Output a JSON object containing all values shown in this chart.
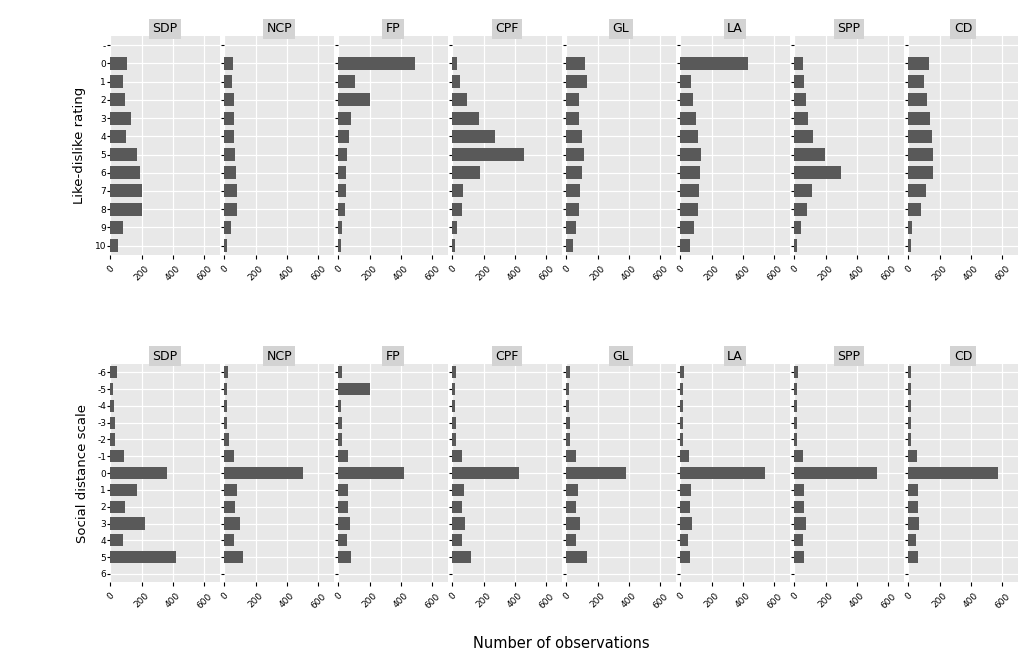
{
  "row_titles": [
    "Like-dislike rating",
    "Social distance scale"
  ],
  "col_titles": [
    "SDP",
    "NCP",
    "FP",
    "CPF",
    "GL",
    "LA",
    "SPP",
    "CD"
  ],
  "xlabel": "Number of observations",
  "bar_color": "#595959",
  "panel_bg": "#e8e8e8",
  "fig_bg": "#ffffff",
  "xlim": [
    0,
    700
  ],
  "xticks": [
    0,
    200,
    400,
    600
  ],
  "ld_labels": [
    "-",
    "0",
    "1",
    "2",
    "3",
    "4",
    "5",
    "6",
    "7",
    "8",
    "9",
    "10"
  ],
  "ld": {
    "SDP": [
      0,
      105,
      80,
      95,
      130,
      100,
      170,
      190,
      205,
      200,
      80,
      50
    ],
    "NCP": [
      0,
      55,
      50,
      60,
      65,
      65,
      70,
      75,
      80,
      80,
      40,
      20
    ],
    "FP": [
      0,
      490,
      105,
      200,
      80,
      70,
      55,
      50,
      50,
      40,
      25,
      20
    ],
    "CPF": [
      0,
      30,
      50,
      95,
      170,
      270,
      460,
      180,
      70,
      60,
      30,
      20
    ],
    "GL": [
      0,
      120,
      130,
      80,
      80,
      100,
      110,
      100,
      90,
      80,
      60,
      40
    ],
    "LA": [
      0,
      430,
      70,
      80,
      100,
      110,
      130,
      125,
      120,
      110,
      90,
      60
    ],
    "SPP": [
      0,
      55,
      65,
      75,
      90,
      120,
      195,
      300,
      115,
      80,
      45,
      20
    ],
    "CD": [
      0,
      130,
      100,
      120,
      140,
      150,
      160,
      155,
      115,
      80,
      25,
      15
    ]
  },
  "sd_labels": [
    "-6",
    "-5",
    "-4",
    "-3",
    "-2",
    "-1",
    "0",
    "1",
    "2",
    "3",
    "4",
    "5",
    "6"
  ],
  "sd": {
    "SDP": [
      40,
      20,
      25,
      30,
      30,
      90,
      360,
      170,
      95,
      220,
      80,
      420,
      0
    ],
    "NCP": [
      25,
      20,
      20,
      20,
      30,
      60,
      500,
      80,
      70,
      100,
      60,
      120,
      0
    ],
    "FP": [
      25,
      200,
      20,
      25,
      25,
      60,
      420,
      65,
      60,
      75,
      55,
      80,
      0
    ],
    "CPF": [
      25,
      20,
      20,
      25,
      25,
      60,
      425,
      75,
      65,
      80,
      60,
      120,
      0
    ],
    "GL": [
      25,
      20,
      20,
      25,
      25,
      60,
      380,
      75,
      65,
      90,
      65,
      130,
      0
    ],
    "LA": [
      22,
      18,
      18,
      20,
      20,
      55,
      540,
      70,
      60,
      75,
      50,
      60,
      0
    ],
    "SPP": [
      22,
      18,
      18,
      20,
      20,
      55,
      530,
      65,
      60,
      75,
      55,
      60,
      0
    ],
    "CD": [
      20,
      18,
      18,
      20,
      20,
      55,
      570,
      65,
      60,
      70,
      50,
      60,
      0
    ]
  }
}
